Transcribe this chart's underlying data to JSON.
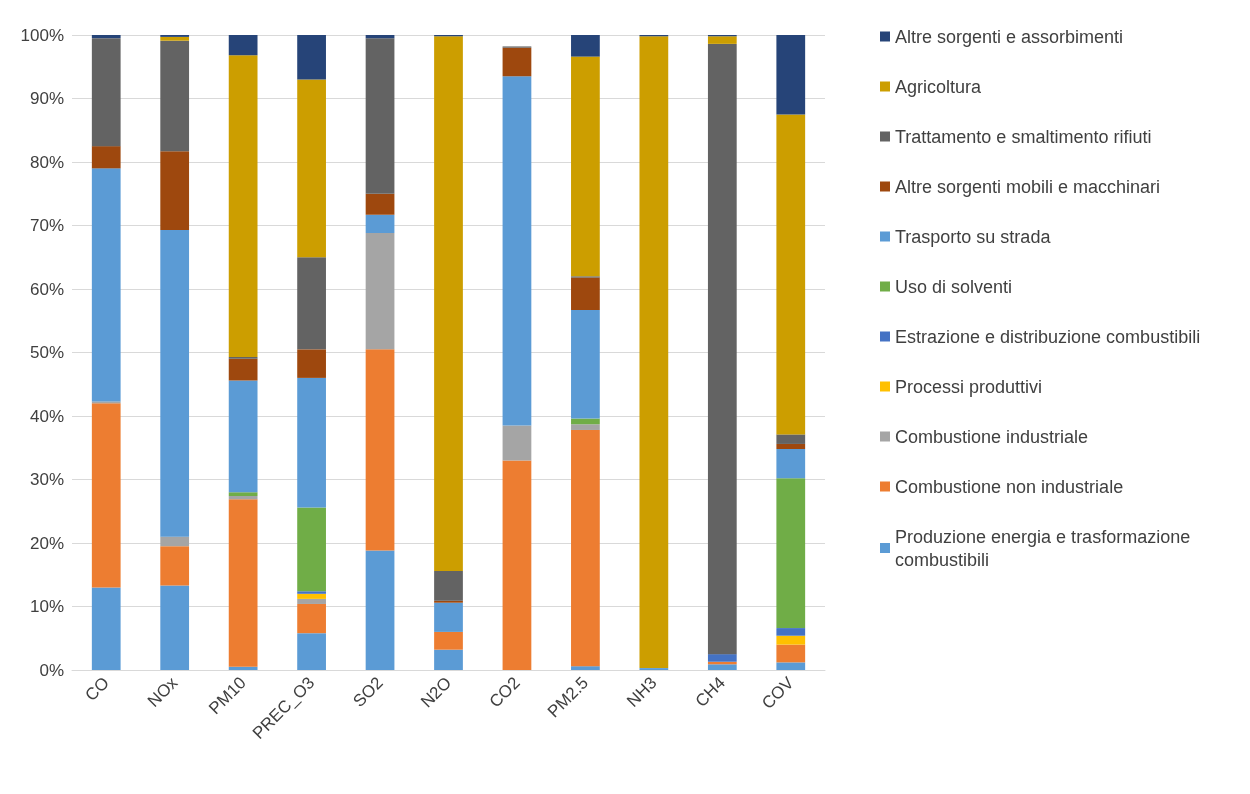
{
  "chart_data": {
    "type": "bar",
    "stacked": true,
    "categories": [
      "CO",
      "NOx",
      "PM10",
      "PREC_O3",
      "SO2",
      "N2O",
      "CO2",
      "PM2.5",
      "NH3",
      "CH4",
      "COV"
    ],
    "series": [
      {
        "name": "Produzione energia e trasformazione combustibili",
        "color": "#5b9bd5",
        "values": [
          13,
          13.3,
          0.5,
          5.8,
          18.8,
          3.2,
          0,
          0.6,
          0.3,
          0.9,
          1.2
        ]
      },
      {
        "name": "Combustione non industriale",
        "color": "#ed7d31",
        "values": [
          29,
          6.2,
          26.4,
          4.6,
          31.7,
          2.8,
          33,
          37.2,
          0,
          0.4,
          2.8
        ]
      },
      {
        "name": "Combustione industriale",
        "color": "#a5a5a5",
        "values": [
          0.3,
          1.5,
          0.5,
          0.8,
          18.3,
          0,
          5.5,
          0.9,
          0,
          0,
          0
        ]
      },
      {
        "name": "Processi produttivi",
        "color": "#ffc000",
        "values": [
          0,
          0,
          0,
          0.8,
          0,
          0,
          0,
          0,
          0,
          0,
          1.4
        ]
      },
      {
        "name": "Estrazione e distribuzione combustibili",
        "color": "#4472c4",
        "values": [
          0,
          0,
          0,
          0.4,
          0,
          0,
          0,
          0,
          0,
          1.2,
          1.2
        ]
      },
      {
        "name": "Uso di solventi",
        "color": "#70ad47",
        "values": [
          0,
          0,
          0.6,
          13.2,
          0,
          0,
          0,
          0.9,
          0,
          0,
          23.6
        ]
      },
      {
        "name": "Trasporto su strada",
        "color": "#5b9bd5",
        "values": [
          36.7,
          48.3,
          17.6,
          20.4,
          2.9,
          4.6,
          55,
          17.1,
          0,
          0,
          4.6
        ]
      },
      {
        "name": "Altre sorgenti mobili e macchinari",
        "color": "#9e480e",
        "values": [
          3.5,
          12.4,
          3.4,
          4.5,
          3.3,
          0.3,
          4.5,
          5.1,
          0,
          0,
          0.8
        ]
      },
      {
        "name": "Trattamento e smaltimento rifiuti",
        "color": "#636363",
        "values": [
          17,
          17.4,
          0.3,
          14.5,
          24.5,
          4.7,
          0.2,
          0.2,
          0,
          96.1,
          1.5
        ]
      },
      {
        "name": "Agricoltura",
        "color": "#cc9e00",
        "values": [
          0,
          0.6,
          47.5,
          28,
          0,
          84.2,
          0,
          34.6,
          99.5,
          1.2,
          50.4
        ]
      },
      {
        "name": "Altre sorgenti e assorbimenti",
        "color": "#264478",
        "values": [
          0.5,
          0.3,
          3.2,
          7,
          0.5,
          0.2,
          0,
          3.4,
          0.2,
          0.2,
          12.5
        ]
      }
    ],
    "ylim": [
      0,
      100
    ],
    "yticks": [
      {
        "value": 0,
        "label": "0%"
      },
      {
        "value": 10,
        "label": "10%"
      },
      {
        "value": 20,
        "label": "20%"
      },
      {
        "value": 30,
        "label": "30%"
      },
      {
        "value": 40,
        "label": "40%"
      },
      {
        "value": 50,
        "label": "50%"
      },
      {
        "value": 60,
        "label": "60%"
      },
      {
        "value": 70,
        "label": "70%"
      },
      {
        "value": 80,
        "label": "80%"
      },
      {
        "value": 90,
        "label": "90%"
      },
      {
        "value": 100,
        "label": "100%"
      }
    ],
    "grid": "y",
    "legend": "right"
  }
}
